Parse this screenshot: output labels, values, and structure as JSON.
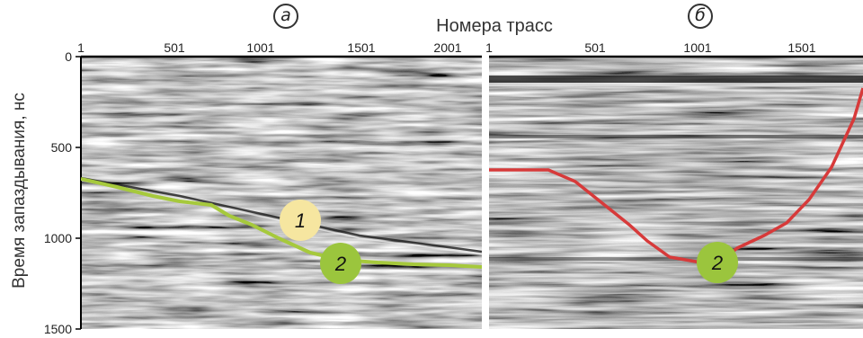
{
  "x_axis_title": "Номера трасс",
  "y_axis_title": "Время запаздывания, нс",
  "panels": [
    {
      "letter": "а",
      "x_ticks": [
        "1",
        "501",
        "1001",
        "1501",
        "2001",
        "1"
      ],
      "line_color": "#a6c93c",
      "markers": [
        {
          "label": "1",
          "fill": "#f6e6a0"
        },
        {
          "label": "2",
          "fill": "#9bc53d"
        }
      ]
    },
    {
      "letter": "б",
      "x_ticks": [
        "501",
        "1001",
        "1501"
      ],
      "line_color": "#d73a3a",
      "markers": [
        {
          "label": "2",
          "fill": "#9bc53d"
        }
      ]
    }
  ],
  "y_ticks": [
    "0",
    "500",
    "1000",
    "1500"
  ]
}
